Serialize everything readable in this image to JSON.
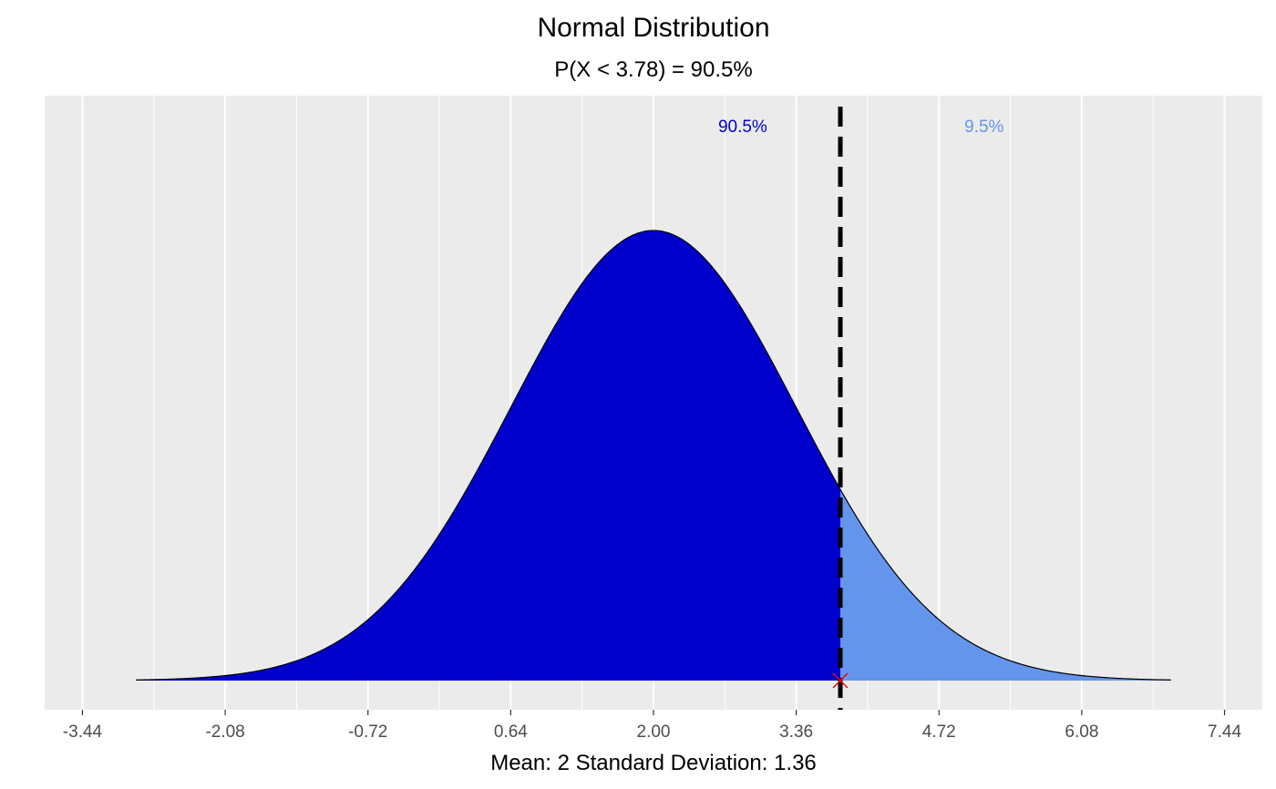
{
  "chart_data": {
    "type": "area",
    "title": "Normal Distribution",
    "subtitle": "P(X < 3.78) = 90.5%",
    "xlabel": "Mean: 2  Standard Deviation: 1.36",
    "ylabel": "",
    "distribution": {
      "mean": 2,
      "sd": 1.36
    },
    "cutoff": 3.78,
    "curve_range": [
      -2.93,
      6.93
    ],
    "xlim": [
      -3.8,
      7.8
    ],
    "x_ticks": [
      -3.44,
      -2.08,
      -0.72,
      0.64,
      2.0,
      3.36,
      4.72,
      6.08,
      7.44
    ],
    "x_tick_labels": [
      "-3.44",
      "-2.08",
      "-0.72",
      "0.64",
      "2.00",
      "3.36",
      "4.72",
      "6.08",
      "7.44"
    ],
    "regions": [
      {
        "label": "90.5%",
        "from": -2.93,
        "to": 3.78,
        "probability": 0.905,
        "color": "#0000CD",
        "label_color": "#0000CD",
        "label_x": 2.85
      },
      {
        "label": "9.5%",
        "from": 3.78,
        "to": 6.93,
        "probability": 0.095,
        "color": "#6495ED",
        "label_color": "#6495ED",
        "label_x": 5.15
      }
    ],
    "cutoff_line": {
      "style": "dashed",
      "color": "#000000"
    },
    "marker": {
      "x": 3.78,
      "y": 0,
      "symbol": "x",
      "color": "#FF0000"
    },
    "grid": true,
    "panel_background": "#EBEBEB",
    "legend": "none"
  }
}
